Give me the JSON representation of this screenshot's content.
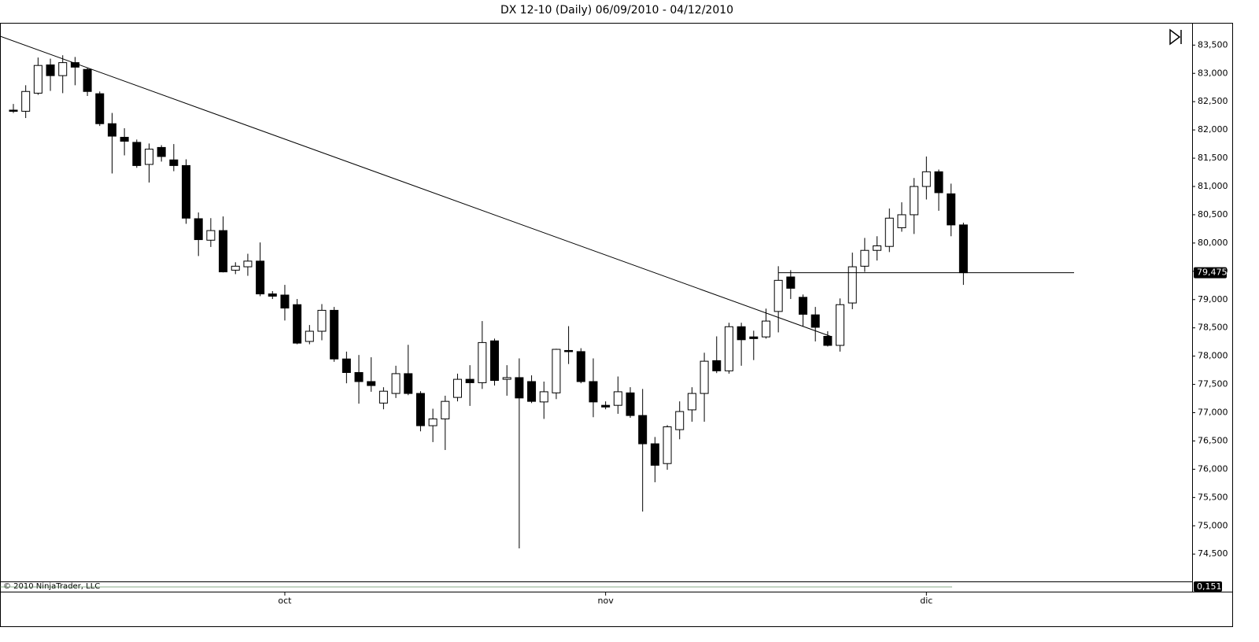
{
  "chart_data": {
    "type": "candlestick",
    "title": "DX 12-10 (Daily)  06/09/2010 - 04/12/2010",
    "copyright": "© 2010 NinjaTrader, LLC",
    "categories": [
      null,
      null,
      null,
      null,
      null,
      null,
      null,
      null,
      null,
      null,
      null,
      null,
      null,
      null,
      null,
      null,
      null,
      null,
      null,
      null,
      null,
      null,
      "oct",
      null,
      null,
      null,
      null,
      null,
      null,
      null,
      null,
      null,
      null,
      null,
      null,
      null,
      null,
      null,
      null,
      null,
      null,
      null,
      null,
      null,
      null,
      null,
      null,
      null,
      "nov",
      null,
      null,
      null,
      null,
      null,
      null,
      null,
      null,
      null,
      null,
      null,
      null,
      null,
      null,
      null,
      null,
      null,
      null,
      null,
      null,
      null,
      null,
      null,
      null,
      null,
      "dic",
      null,
      null,
      null
    ],
    "open": [
      82.35,
      82.33,
      82.65,
      83.15,
      82.96,
      83.19,
      83.07,
      82.64,
      82.11,
      81.87,
      81.78,
      81.39,
      81.69,
      81.47,
      81.37,
      80.43,
      80.05,
      80.22,
      79.52,
      79.58,
      79.68,
      79.1,
      79.08,
      78.91,
      78.26,
      78.44,
      78.81,
      77.95,
      77.71,
      77.55,
      77.17,
      77.34,
      77.69,
      77.34,
      76.77,
      76.89,
      77.27,
      77.59,
      77.53,
      78.27,
      77.59,
      77.62,
      77.55,
      77.19,
      77.35,
      78.1,
      78.08,
      77.55,
      77.13,
      77.13,
      77.35,
      76.95,
      76.45,
      76.1,
      76.7,
      77.05,
      77.34,
      77.92,
      77.74,
      78.52,
      78.34,
      78.34,
      78.79,
      79.4,
      79.04,
      78.73,
      78.35,
      78.19,
      78.94,
      79.59,
      79.87,
      79.94,
      80.27,
      80.5,
      81.0,
      81.26,
      80.87,
      80.32
    ],
    "high": [
      82.46,
      82.79,
      83.28,
      83.26,
      83.32,
      83.29,
      83.1,
      82.68,
      82.3,
      82.03,
      81.83,
      81.76,
      81.73,
      81.75,
      81.48,
      80.54,
      80.44,
      80.47,
      79.66,
      79.81,
      80.01,
      79.15,
      79.26,
      79.01,
      78.55,
      78.92,
      78.87,
      78.08,
      78.02,
      77.98,
      77.45,
      77.83,
      78.2,
      77.38,
      77.07,
      77.3,
      77.69,
      77.84,
      78.62,
      78.31,
      77.84,
      77.96,
      77.66,
      77.55,
      78.13,
      78.53,
      78.14,
      77.96,
      77.2,
      77.64,
      77.45,
      77.42,
      76.57,
      76.78,
      77.2,
      77.45,
      78.06,
      78.35,
      78.59,
      78.59,
      78.45,
      78.84,
      79.59,
      79.52,
      79.09,
      78.87,
      78.44,
      79.02,
      79.83,
      80.09,
      80.12,
      80.61,
      80.72,
      81.15,
      81.53,
      81.3,
      81.05,
      80.36
    ],
    "low": [
      82.3,
      82.21,
      82.62,
      82.69,
      82.65,
      82.79,
      82.6,
      82.07,
      81.23,
      81.55,
      81.33,
      81.07,
      81.44,
      81.27,
      80.34,
      79.77,
      79.93,
      79.48,
      79.45,
      79.42,
      79.06,
      79.01,
      78.63,
      78.21,
      78.21,
      78.28,
      77.9,
      77.52,
      77.16,
      77.37,
      77.06,
      77.26,
      77.31,
      76.67,
      76.48,
      76.34,
      77.2,
      77.12,
      77.42,
      77.48,
      77.3,
      74.6,
      77.17,
      76.89,
      77.24,
      77.86,
      77.52,
      76.92,
      77.06,
      76.98,
      76.91,
      75.25,
      75.77,
      75.99,
      76.53,
      76.84,
      76.84,
      77.7,
      77.69,
      77.83,
      77.93,
      78.31,
      78.42,
      79.01,
      78.53,
      78.26,
      78.17,
      78.08,
      78.83,
      79.49,
      79.69,
      79.84,
      80.2,
      80.16,
      80.77,
      80.57,
      80.12,
      79.26
    ],
    "close": [
      82.33,
      82.68,
      83.14,
      82.96,
      83.19,
      83.11,
      82.68,
      82.11,
      81.89,
      81.8,
      81.37,
      81.66,
      81.53,
      81.37,
      80.44,
      80.06,
      80.22,
      79.49,
      79.59,
      79.68,
      79.1,
      79.06,
      78.85,
      78.23,
      78.44,
      78.81,
      77.95,
      77.71,
      77.55,
      77.48,
      77.38,
      77.69,
      77.34,
      76.77,
      76.89,
      77.2,
      77.59,
      77.53,
      78.24,
      77.57,
      77.62,
      77.26,
      77.2,
      77.37,
      78.12,
      78.09,
      77.55,
      77.19,
      77.1,
      77.37,
      76.95,
      76.45,
      76.07,
      76.75,
      77.02,
      77.34,
      77.91,
      77.74,
      78.52,
      78.29,
      78.31,
      78.62,
      79.34,
      79.2,
      78.74,
      78.51,
      78.19,
      78.91,
      79.58,
      79.87,
      79.95,
      80.44,
      80.5,
      81.0,
      81.26,
      80.89,
      80.32,
      79.475
    ],
    "last_price": {
      "value": 79.475,
      "label": "79,475"
    },
    "indicator_last": {
      "value": 0.151,
      "label": "0,151"
    },
    "ylim": [
      74.03,
      83.88
    ],
    "yticks": [
      {
        "value": 74.5,
        "label": "74,500"
      },
      {
        "value": 75,
        "label": "75,000"
      },
      {
        "value": 75.5,
        "label": "75,500"
      },
      {
        "value": 76,
        "label": "76,000"
      },
      {
        "value": 76.5,
        "label": "76,500"
      },
      {
        "value": 77,
        "label": "77,000"
      },
      {
        "value": 77.5,
        "label": "77,500"
      },
      {
        "value": 78,
        "label": "78,000"
      },
      {
        "value": 78.5,
        "label": "78,500"
      },
      {
        "value": 79,
        "label": "79,000"
      },
      {
        "value": 79.5,
        "label": "79,500"
      },
      {
        "value": 80,
        "label": "80,000"
      },
      {
        "value": 80.5,
        "label": "80,500"
      },
      {
        "value": 81,
        "label": "81,000"
      },
      {
        "value": 81.5,
        "label": "81,500"
      },
      {
        "value": 82,
        "label": "82,000"
      },
      {
        "value": 82.5,
        "label": "82,500"
      },
      {
        "value": 83,
        "label": "83,000"
      },
      {
        "value": 83.5,
        "label": "83,500"
      }
    ],
    "up_color": "#ffffff",
    "down_color": "#000000",
    "grid": false
  }
}
